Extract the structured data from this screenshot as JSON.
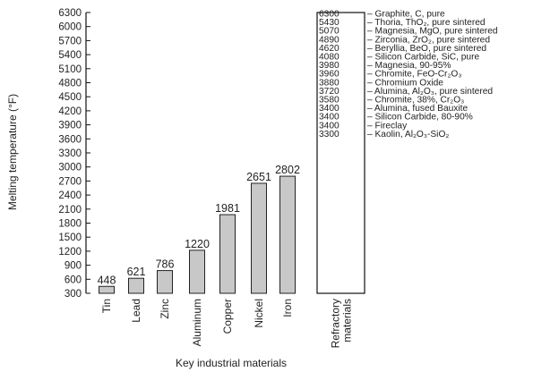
{
  "chart_data": {
    "type": "bar",
    "xlabel": "Key industrial materials",
    "ylabel": "Melting temperature (°F)",
    "ylim": [
      300,
      6300
    ],
    "yticks": [
      300,
      600,
      900,
      1200,
      1500,
      1800,
      2100,
      2400,
      2700,
      3000,
      3300,
      3600,
      3900,
      4200,
      4500,
      4800,
      5100,
      5400,
      5700,
      6000,
      6300
    ],
    "categories": [
      "Tin",
      "Lead",
      "Zinc",
      "Aluminum",
      "Copper",
      "Nickel",
      "Iron"
    ],
    "values": [
      448,
      621,
      786,
      1220,
      1981,
      2651,
      2802
    ],
    "value_labels": [
      "448",
      "621",
      "786",
      "1220",
      "1981",
      "2651",
      "2802"
    ],
    "refractory": {
      "category": "Refractory materials",
      "category_lines": [
        "Refractory",
        "materials"
      ],
      "items": [
        {
          "value": "6300",
          "name": "Graphite, C, pure"
        },
        {
          "value": "5430",
          "name": "Thoria, ThO₂, pure sintered"
        },
        {
          "value": "5070",
          "name": "Magnesia, MgO, pure sintered"
        },
        {
          "value": "4890",
          "name": "Zirconia, ZrO₂, pure sintered"
        },
        {
          "value": "4620",
          "name": "Beryllia, BeO, pure sintered"
        },
        {
          "value": "4080",
          "name": "Silicon Carbide, SiC, pure"
        },
        {
          "value": "3980",
          "name": "Magnesia, 90-95%"
        },
        {
          "value": "3960",
          "name": "Chromite, FeO-Cr₂O₃"
        },
        {
          "value": "3880",
          "name": "Chromium Oxide"
        },
        {
          "value": "3720",
          "name": "Alumina, Al₂O₃, pure sintered"
        },
        {
          "value": "3580",
          "name": "Chromite, 38%, Cr₂O₃"
        },
        {
          "value": "3400",
          "name": "Alumina, fused Bauxite"
        },
        {
          "value": "3400",
          "name": "Silicon Carbide, 80-90%"
        },
        {
          "value": "3400",
          "name": "Fireclay"
        },
        {
          "value": "3300",
          "name": "Kaolin, Al₂O₃-SiO₂"
        }
      ]
    },
    "grid": false,
    "legend": "none"
  }
}
